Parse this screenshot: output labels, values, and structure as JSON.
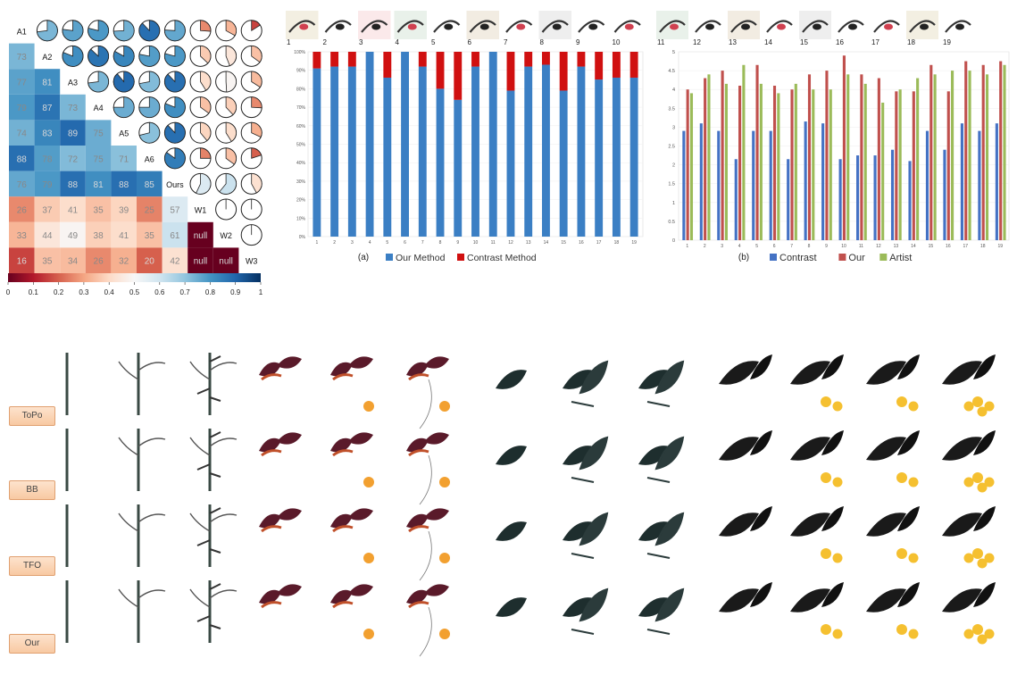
{
  "heatmap": {
    "labels": [
      "A1",
      "A2",
      "A3",
      "A4",
      "A5",
      "A6",
      "Ours",
      "W1",
      "W2",
      "W3"
    ],
    "matrix": [
      [
        null,
        null,
        null,
        null,
        null,
        null,
        null,
        null,
        null,
        null
      ],
      [
        73,
        null,
        null,
        null,
        null,
        null,
        null,
        null,
        null,
        null
      ],
      [
        77,
        81,
        null,
        null,
        null,
        null,
        null,
        null,
        null,
        null
      ],
      [
        79,
        87,
        73,
        null,
        null,
        null,
        null,
        null,
        null,
        null
      ],
      [
        74,
        83,
        89,
        75,
        null,
        null,
        null,
        null,
        null,
        null
      ],
      [
        88,
        78,
        72,
        75,
        71,
        null,
        null,
        null,
        null,
        null
      ],
      [
        76,
        79,
        88,
        81,
        88,
        85,
        null,
        null,
        null,
        null
      ],
      [
        26,
        37,
        41,
        35,
        39,
        25,
        57,
        null,
        null,
        null
      ],
      [
        33,
        44,
        49,
        38,
        41,
        35,
        61,
        null,
        null,
        null
      ],
      [
        16,
        35,
        34,
        26,
        32,
        20,
        42,
        null,
        null,
        null
      ]
    ],
    "colorbar_ticks": [
      "0",
      "0.1",
      "0.2",
      "0.3",
      "0.4",
      "0.5",
      "0.6",
      "0.7",
      "0.8",
      "0.9",
      "1"
    ]
  },
  "chart_data": [
    {
      "type": "bar",
      "stacked": true,
      "panel_label": "(a)",
      "categories": [
        "1",
        "2",
        "3",
        "4",
        "5",
        "6",
        "7",
        "8",
        "9",
        "10",
        "11",
        "12",
        "13",
        "14",
        "15",
        "16",
        "17",
        "18",
        "19"
      ],
      "series": [
        {
          "name": "Our Method",
          "color": "#3b7fc4",
          "values": [
            91,
            92,
            92,
            100,
            86,
            100,
            92,
            80,
            74,
            92,
            100,
            79,
            92,
            93,
            79,
            92,
            85,
            86,
            86
          ]
        },
        {
          "name": "Contrast Method",
          "color": "#d01010",
          "values": [
            9,
            8,
            8,
            0,
            14,
            0,
            8,
            20,
            26,
            8,
            0,
            21,
            8,
            7,
            21,
            8,
            15,
            14,
            14
          ]
        }
      ],
      "yticks": [
        "0%",
        "10%",
        "20%",
        "30%",
        "40%",
        "50%",
        "60%",
        "70%",
        "80%",
        "90%",
        "100%"
      ],
      "ylim": [
        0,
        100
      ],
      "legend": "bottom",
      "thumb_labels": [
        "1",
        "2",
        "3",
        "4",
        "5",
        "6",
        "7",
        "8",
        "9",
        "10"
      ]
    },
    {
      "type": "bar",
      "panel_label": "(b)",
      "categories": [
        "1",
        "2",
        "3",
        "4",
        "5",
        "6",
        "7",
        "8",
        "9",
        "10",
        "11",
        "12",
        "13",
        "14",
        "15",
        "16",
        "17",
        "18",
        "19"
      ],
      "series": [
        {
          "name": "Contrast",
          "color": "#4472c4",
          "values": [
            2.9,
            3.1,
            2.9,
            2.15,
            2.9,
            2.9,
            2.15,
            3.15,
            3.1,
            2.15,
            2.25,
            2.25,
            2.4,
            2.1,
            2.9,
            2.4,
            3.1,
            2.9,
            3.1
          ]
        },
        {
          "name": "Our",
          "color": "#c0504d",
          "values": [
            4.0,
            4.3,
            4.5,
            4.1,
            4.65,
            4.1,
            4.0,
            4.4,
            4.5,
            4.9,
            4.4,
            4.3,
            3.95,
            3.95,
            4.65,
            3.95,
            4.75,
            4.65,
            4.75
          ]
        },
        {
          "name": "Artist",
          "color": "#9bbb59",
          "values": [
            3.9,
            4.4,
            4.15,
            4.65,
            4.15,
            3.9,
            4.15,
            4.0,
            4.0,
            4.4,
            4.15,
            3.65,
            4.0,
            4.3,
            4.4,
            4.5,
            4.5,
            4.4,
            4.65
          ]
        }
      ],
      "yticks": [
        "0",
        "0.5",
        "1",
        "1.5",
        "2",
        "2.5",
        "3",
        "3.5",
        "4",
        "4.5",
        "5"
      ],
      "ylim": [
        0,
        5
      ],
      "legend": "bottom",
      "thumb_labels": [
        "11",
        "12",
        "13",
        "14",
        "15",
        "16",
        "17",
        "18",
        "19"
      ]
    }
  ],
  "comparison": {
    "rows": [
      "ToPo",
      "BB",
      "TFO",
      "Our"
    ]
  }
}
